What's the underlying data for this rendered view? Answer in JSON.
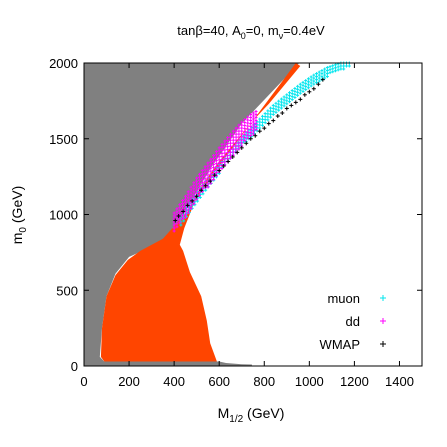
{
  "chart_data": {
    "type": "scatter",
    "title": {
      "main": "tanβ=40, A",
      "sub0": "0",
      "mid": "=0, m",
      "subnu": "ν",
      "end": "=0.4eV"
    },
    "xlabel": {
      "main": "M",
      "sub": "1/2",
      "rest": " (GeV)"
    },
    "ylabel": {
      "main": "m",
      "sub": "0",
      "rest": " (GeV)"
    },
    "xlim": [
      0,
      1500
    ],
    "ylim": [
      0,
      2000
    ],
    "xticks": [
      "0",
      "200",
      "400",
      "600",
      "800",
      "1000",
      "1200",
      "1400"
    ],
    "xtick_values": [
      0,
      200,
      400,
      600,
      800,
      1000,
      1200,
      1400
    ],
    "yticks": [
      "0",
      "500",
      "1000",
      "1500",
      "2000"
    ],
    "ytick_values": [
      0,
      500,
      1000,
      1500,
      2000
    ],
    "legend_position": "bottom-right",
    "regions": [
      {
        "id": "excluded-gray",
        "color": "#808080",
        "polygon": [
          [
            0,
            2000
          ],
          [
            955,
            2000
          ],
          [
            700,
            1600
          ],
          [
            560,
            1300
          ],
          [
            460,
            1050
          ],
          [
            390,
            850
          ],
          [
            290,
            780
          ],
          [
            200,
            720
          ],
          [
            140,
            610
          ],
          [
            100,
            460
          ],
          [
            80,
            250
          ],
          [
            70,
            60
          ],
          [
            90,
            30
          ],
          [
            600,
            30
          ],
          [
            630,
            20
          ],
          [
            700,
            12
          ],
          [
            745,
            10
          ],
          [
            745,
            0
          ],
          [
            0,
            0
          ]
        ]
      },
      {
        "id": "excluded-orange",
        "color": "#ff4500",
        "polygon": [
          [
            940,
            2000
          ],
          [
            960,
            1980
          ],
          [
            820,
            1730
          ],
          [
            750,
            1620
          ],
          [
            600,
            1350
          ],
          [
            500,
            1140
          ],
          [
            460,
            1020
          ],
          [
            410,
            940
          ],
          [
            350,
            840
          ],
          [
            250,
            760
          ],
          [
            195,
            700
          ],
          [
            140,
            600
          ],
          [
            100,
            460
          ],
          [
            80,
            250
          ],
          [
            75,
            60
          ],
          [
            90,
            30
          ],
          [
            590,
            30
          ],
          [
            560,
            150
          ],
          [
            545,
            300
          ],
          [
            520,
            460
          ],
          [
            470,
            620
          ],
          [
            440,
            760
          ],
          [
            425,
            800
          ],
          [
            445,
            910
          ],
          [
            490,
            1080
          ],
          [
            580,
            1280
          ],
          [
            680,
            1480
          ],
          [
            790,
            1700
          ],
          [
            880,
            1880
          ]
        ]
      }
    ],
    "series": [
      {
        "name": "muon",
        "color": "#00e5ee",
        "marker": "plus",
        "band": [
          [
            430,
            930,
            990
          ],
          [
            480,
            1040,
            1100
          ],
          [
            540,
            1160,
            1220
          ],
          [
            600,
            1270,
            1330
          ],
          [
            660,
            1380,
            1430
          ],
          [
            720,
            1480,
            1540
          ],
          [
            780,
            1570,
            1630
          ],
          [
            840,
            1650,
            1720
          ],
          [
            900,
            1720,
            1790
          ],
          [
            960,
            1790,
            1860
          ],
          [
            1020,
            1860,
            1920
          ],
          [
            1080,
            1910,
            1970
          ],
          [
            1140,
            1950,
            2000
          ],
          [
            1190,
            1975,
            2000
          ]
        ]
      },
      {
        "name": "dd",
        "color": "#ff00ff",
        "marker": "plus",
        "band": [
          [
            400,
            880,
            1010
          ],
          [
            450,
            980,
            1120
          ],
          [
            500,
            1090,
            1240
          ],
          [
            550,
            1180,
            1340
          ],
          [
            600,
            1280,
            1440
          ],
          [
            650,
            1370,
            1530
          ],
          [
            700,
            1450,
            1610
          ],
          [
            740,
            1510,
            1660
          ],
          [
            775,
            1560,
            1690
          ]
        ]
      },
      {
        "name": "WMAP",
        "color": "#000000",
        "marker": "plus",
        "points": [
          [
            405,
            960
          ],
          [
            420,
            990
          ],
          [
            440,
            1020
          ],
          [
            460,
            1060
          ],
          [
            480,
            1090
          ],
          [
            500,
            1120
          ],
          [
            520,
            1160
          ],
          [
            540,
            1190
          ],
          [
            560,
            1220
          ],
          [
            580,
            1260
          ],
          [
            600,
            1290
          ],
          [
            620,
            1320
          ],
          [
            640,
            1350
          ],
          [
            660,
            1380
          ],
          [
            680,
            1410
          ],
          [
            700,
            1440
          ],
          [
            720,
            1470
          ],
          [
            740,
            1500
          ],
          [
            760,
            1520
          ],
          [
            780,
            1550
          ],
          [
            800,
            1570
          ],
          [
            820,
            1600
          ],
          [
            840,
            1620
          ],
          [
            860,
            1650
          ],
          [
            880,
            1670
          ],
          [
            900,
            1700
          ],
          [
            920,
            1720
          ],
          [
            940,
            1740
          ],
          [
            960,
            1760
          ],
          [
            980,
            1790
          ],
          [
            1000,
            1810
          ],
          [
            1020,
            1830
          ],
          [
            1040,
            1860
          ],
          [
            1060,
            1890
          ]
        ]
      }
    ]
  }
}
